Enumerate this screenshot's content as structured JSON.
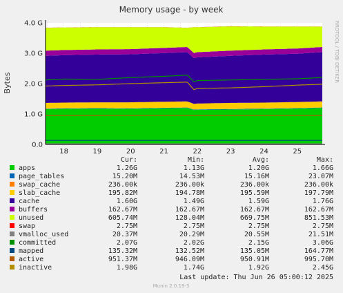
{
  "chart_data": {
    "type": "area",
    "title": "Memory usage - by week",
    "ylabel": "Bytes",
    "xlabel": "",
    "side_label": "RRDTOOL / TOBI OETIKER",
    "ylim": [
      0,
      4.0
    ],
    "unit": "G",
    "grid": true,
    "legend_position": "bottom",
    "y_ticks": [
      "0.0",
      "1.0 G",
      "2.0 G",
      "3.0 G",
      "4.0 G"
    ],
    "y_tick_values": [
      0,
      1,
      2,
      3,
      4
    ],
    "x_ticks": [
      "18",
      "19",
      "20",
      "21",
      "22",
      "23",
      "24",
      "25"
    ],
    "x_tick_values": [
      18,
      19,
      20,
      21,
      22,
      23,
      24,
      25
    ],
    "x_range": [
      17.45,
      25.75
    ],
    "x_anchor_days": [
      17.45,
      18.0,
      19.0,
      20.0,
      21.0,
      21.7,
      21.9,
      22.0,
      23.0,
      24.0,
      25.0,
      25.75
    ],
    "stacked_series": [
      {
        "name": "apps",
        "color": "#00cc00",
        "values": [
          1.16,
          1.17,
          1.18,
          1.17,
          1.19,
          1.2,
          1.13,
          1.14,
          1.15,
          1.16,
          1.18,
          1.2
        ]
      },
      {
        "name": "page_tables",
        "color": "#0066b3",
        "values": [
          0.015,
          0.015,
          0.015,
          0.015,
          0.015,
          0.015,
          0.015,
          0.015,
          0.015,
          0.015,
          0.015,
          0.015
        ]
      },
      {
        "name": "swap_cache",
        "color": "#ff8000",
        "values": [
          0.0,
          0.0,
          0.0,
          0.0,
          0.0,
          0.0,
          0.0,
          0.0,
          0.0,
          0.0,
          0.0,
          0.0
        ]
      },
      {
        "name": "slab_cache",
        "color": "#ffcc00",
        "values": [
          0.19,
          0.19,
          0.19,
          0.2,
          0.2,
          0.2,
          0.19,
          0.19,
          0.2,
          0.2,
          0.2,
          0.2
        ]
      },
      {
        "name": "cache",
        "color": "#330099",
        "values": [
          1.55,
          1.56,
          1.57,
          1.58,
          1.6,
          1.62,
          1.5,
          1.52,
          1.55,
          1.58,
          1.59,
          1.62
        ]
      },
      {
        "name": "buffers",
        "color": "#990099",
        "values": [
          0.17,
          0.17,
          0.17,
          0.17,
          0.17,
          0.17,
          0.17,
          0.17,
          0.17,
          0.17,
          0.17,
          0.17
        ]
      },
      {
        "name": "unused",
        "color": "#ccff00",
        "values": [
          0.75,
          0.74,
          0.73,
          0.72,
          0.68,
          0.63,
          0.85,
          0.82,
          0.8,
          0.75,
          0.72,
          0.67
        ]
      },
      {
        "name": "swap",
        "color": "#ff0000",
        "values": [
          0.003,
          0.003,
          0.003,
          0.003,
          0.003,
          0.003,
          0.003,
          0.003,
          0.003,
          0.003,
          0.003,
          0.003
        ]
      }
    ],
    "line_series": [
      {
        "name": "vmalloc_used",
        "color": "#808080",
        "values": [
          0.02,
          0.02,
          0.02,
          0.02,
          0.02,
          0.02,
          0.02,
          0.02,
          0.02,
          0.02,
          0.02,
          0.02
        ]
      },
      {
        "name": "committed",
        "color": "#008f00",
        "values": [
          2.12,
          2.15,
          2.14,
          2.2,
          2.24,
          2.28,
          2.06,
          2.1,
          2.12,
          2.14,
          2.16,
          2.2
        ]
      },
      {
        "name": "mapped",
        "color": "#00487d",
        "values": [
          0.135,
          0.135,
          0.135,
          0.135,
          0.135,
          0.135,
          0.135,
          0.135,
          0.135,
          0.135,
          0.135,
          0.135
        ]
      },
      {
        "name": "active",
        "color": "#b35a00",
        "values": [
          0.95,
          0.95,
          0.95,
          0.95,
          0.95,
          0.95,
          0.95,
          0.95,
          0.95,
          0.95,
          0.95,
          0.95
        ]
      },
      {
        "name": "inactive",
        "color": "#b38f00",
        "values": [
          1.92,
          1.94,
          1.96,
          2.0,
          2.03,
          2.05,
          1.8,
          1.84,
          1.86,
          1.9,
          1.95,
          1.98
        ]
      }
    ]
  },
  "legend": {
    "headers": {
      "cur": "Cur:",
      "min": "Min:",
      "avg": "Avg:",
      "max": "Max:"
    },
    "rows": [
      {
        "name": "apps",
        "color": "#00cc00",
        "cur": "1.26G",
        "min": "1.13G",
        "avg": "1.20G",
        "max": "1.66G"
      },
      {
        "name": "page_tables",
        "color": "#0066b3",
        "cur": "15.20M",
        "min": "14.53M",
        "avg": "15.16M",
        "max": "23.07M"
      },
      {
        "name": "swap_cache",
        "color": "#ff8000",
        "cur": "236.00k",
        "min": "236.00k",
        "avg": "236.00k",
        "max": "236.00k"
      },
      {
        "name": "slab_cache",
        "color": "#ffcc00",
        "cur": "195.82M",
        "min": "194.78M",
        "avg": "195.59M",
        "max": "197.79M"
      },
      {
        "name": "cache",
        "color": "#330099",
        "cur": "1.60G",
        "min": "1.49G",
        "avg": "1.59G",
        "max": "1.76G"
      },
      {
        "name": "buffers",
        "color": "#990099",
        "cur": "162.67M",
        "min": "162.67M",
        "avg": "162.67M",
        "max": "162.67M"
      },
      {
        "name": "unused",
        "color": "#ccff00",
        "cur": "605.74M",
        "min": "128.04M",
        "avg": "669.75M",
        "max": "851.53M"
      },
      {
        "name": "swap",
        "color": "#ff0000",
        "cur": "2.75M",
        "min": "2.75M",
        "avg": "2.75M",
        "max": "2.75M"
      },
      {
        "name": "vmalloc_used",
        "color": "#808080",
        "cur": "20.37M",
        "min": "20.29M",
        "avg": "20.55M",
        "max": "21.51M"
      },
      {
        "name": "committed",
        "color": "#008f00",
        "cur": "2.07G",
        "min": "2.02G",
        "avg": "2.15G",
        "max": "3.06G"
      },
      {
        "name": "mapped",
        "color": "#00487d",
        "cur": "135.32M",
        "min": "132.52M",
        "avg": "135.05M",
        "max": "164.77M"
      },
      {
        "name": "active",
        "color": "#b35a00",
        "cur": "951.37M",
        "min": "946.09M",
        "avg": "950.91M",
        "max": "995.70M"
      },
      {
        "name": "inactive",
        "color": "#b38f00",
        "cur": "1.98G",
        "min": "1.74G",
        "avg": "1.92G",
        "max": "2.45G"
      }
    ]
  },
  "footer": {
    "last_update": "Last update:  Thu Jun 26 05:00:12 2025",
    "version": "Munin 2.0.19-3"
  }
}
